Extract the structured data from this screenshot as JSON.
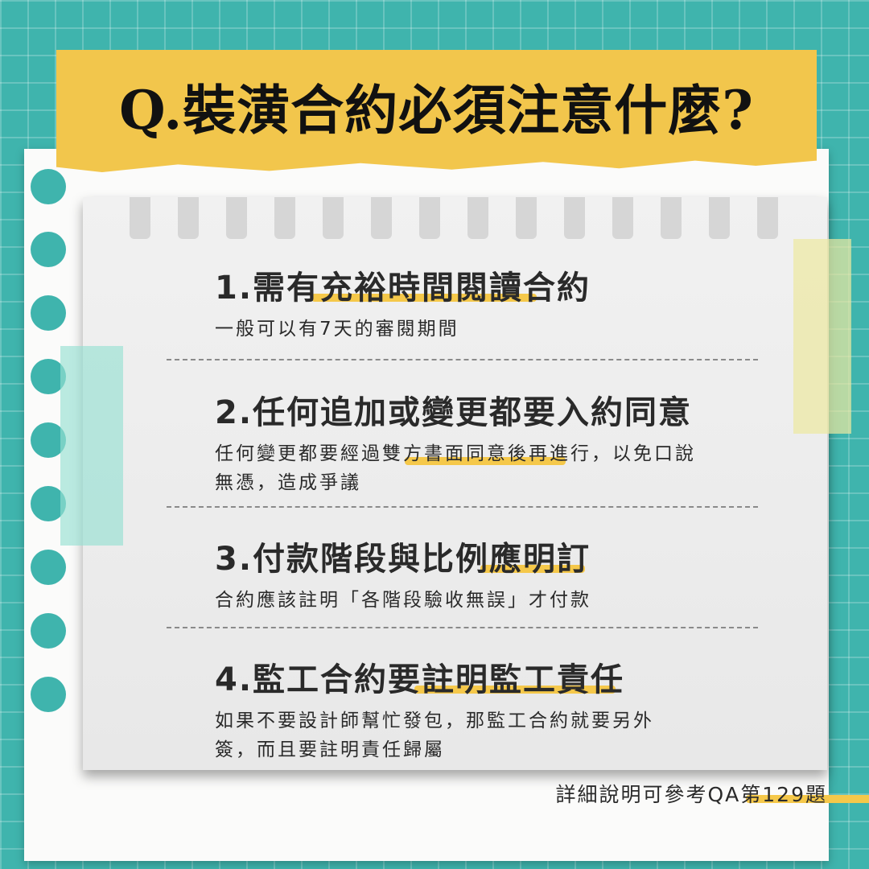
{
  "title": "Q.裝潢合約必須注意什麼?",
  "items": [
    {
      "heading": "1.需有充裕時間閱讀合約",
      "description": "一般可以有7天的審閱期間"
    },
    {
      "heading": "2.任何追加或變更都要入約同意",
      "description": "任何變更都要經過雙方書面同意後再進行，以免口說無憑，造成爭議"
    },
    {
      "heading": "3.付款階段與比例應明訂",
      "description": "合約應該註明「各階段驗收無誤」才付款"
    },
    {
      "heading": "4.監工合約要註明監工責任",
      "description": "如果不要設計師幫忙發包，那監工合約就要另外簽，而且要註明責任歸屬"
    }
  ],
  "footnote": "詳細說明可參考QA第129題",
  "colors": {
    "background": "#3fb4ad",
    "banner": "#f2c64c",
    "highlight": "#f5c84a"
  }
}
